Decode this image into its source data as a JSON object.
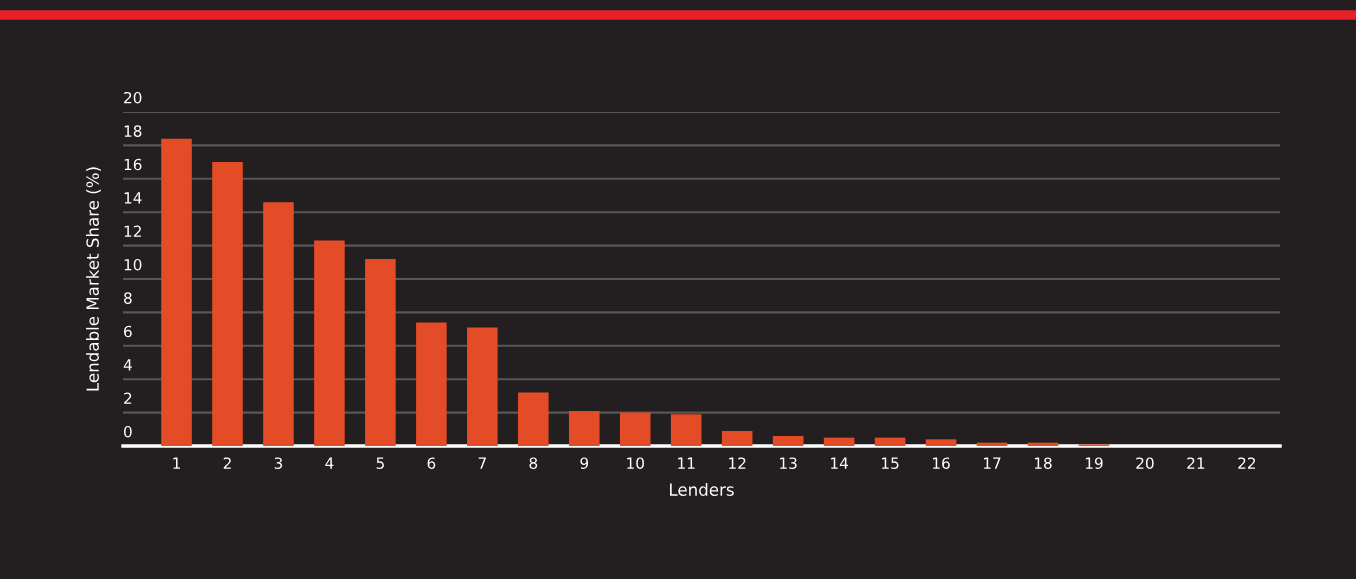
{
  "chart_data": {
    "type": "bar",
    "xlabel": "Lenders",
    "ylabel": "Lendable Market Share (%)",
    "categories": [
      "1",
      "2",
      "3",
      "4",
      "5",
      "6",
      "7",
      "8",
      "9",
      "10",
      "11",
      "12",
      "13",
      "14",
      "15",
      "16",
      "17",
      "18",
      "19",
      "20",
      "21",
      "22"
    ],
    "values": [
      18.4,
      17.0,
      14.6,
      12.3,
      11.2,
      7.4,
      7.1,
      3.2,
      2.1,
      2.0,
      1.9,
      0.9,
      0.6,
      0.5,
      0.5,
      0.4,
      0.2,
      0.2,
      0.1,
      0,
      0,
      0
    ],
    "color": "#e34c26",
    "ylim": [
      0,
      20
    ],
    "yticks": [
      0,
      2,
      4,
      6,
      8,
      10,
      12,
      14,
      16,
      18,
      20
    ],
    "grid": "y",
    "legend": false
  }
}
